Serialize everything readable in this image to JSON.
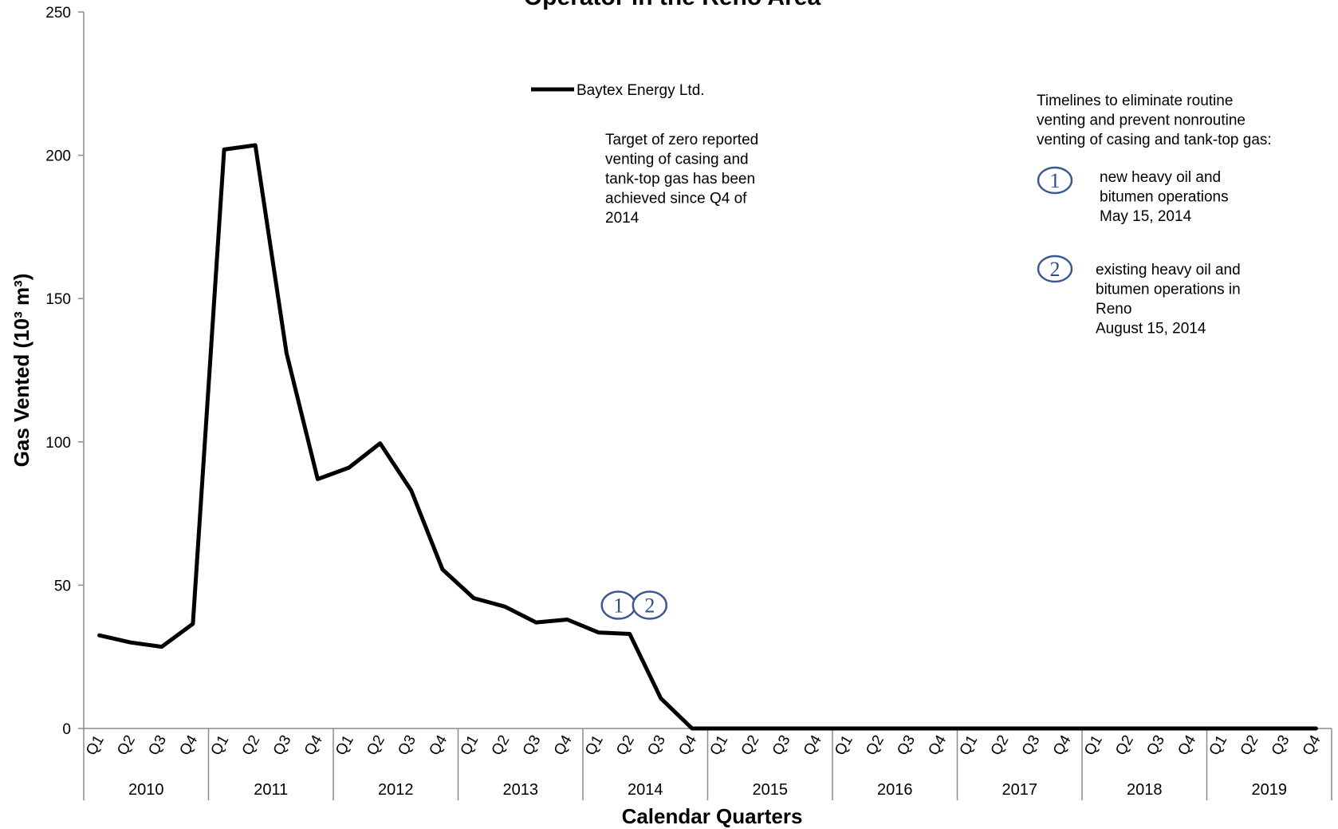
{
  "chart_data": {
    "type": "line",
    "title": "Operator in the Reno Area",
    "xlabel": "Calendar Quarters",
    "ylabel": "Gas Vented (10³ m³)",
    "ylim": [
      0,
      250
    ],
    "yticks": [
      "0",
      "50",
      "100",
      "150",
      "200",
      "250"
    ],
    "quarter_labels": [
      "Q1",
      "Q2",
      "Q3",
      "Q4"
    ],
    "years": [
      "2010",
      "2011",
      "2012",
      "2013",
      "2014",
      "2015",
      "2016",
      "2017",
      "2018",
      "2019"
    ],
    "grid": false,
    "legend_position": "top-center",
    "series": [
      {
        "name": "Baytex Energy Ltd.",
        "color": "#000000",
        "values": [
          32.5,
          30,
          28.5,
          36.5,
          202,
          203.5,
          131,
          87,
          91,
          99.5,
          83,
          55.5,
          45.5,
          42.5,
          37,
          38,
          33.5,
          33,
          10.5,
          0,
          0,
          0,
          0,
          0,
          0,
          0,
          0,
          0,
          0,
          0,
          0,
          0,
          0,
          0,
          0,
          0,
          0,
          0,
          0,
          0
        ]
      }
    ],
    "markers": [
      {
        "label": "1",
        "quarter_index": 17,
        "y": 43
      },
      {
        "label": "2",
        "quarter_index": 18,
        "y": 43
      }
    ]
  },
  "annotations": {
    "target_lines": [
      "Target of zero reported",
      "venting of casing and",
      "tank-top gas has been",
      "achieved since Q4 of",
      "2014"
    ],
    "timeline_lines": [
      "Timelines to eliminate routine",
      "venting and prevent nonroutine",
      "venting of casing and tank-top gas:"
    ],
    "item1_lines": [
      "new  heavy oil and",
      "bitumen operations",
      "May 15,  2014"
    ],
    "item2_lines": [
      "existing heavy oil  and",
      "bitumen operations  in",
      "Reno",
      "August 15, 2014"
    ]
  },
  "colors": {
    "line": "#000000",
    "axis": "#8c8c8c",
    "marker": "#3a5a8f"
  }
}
